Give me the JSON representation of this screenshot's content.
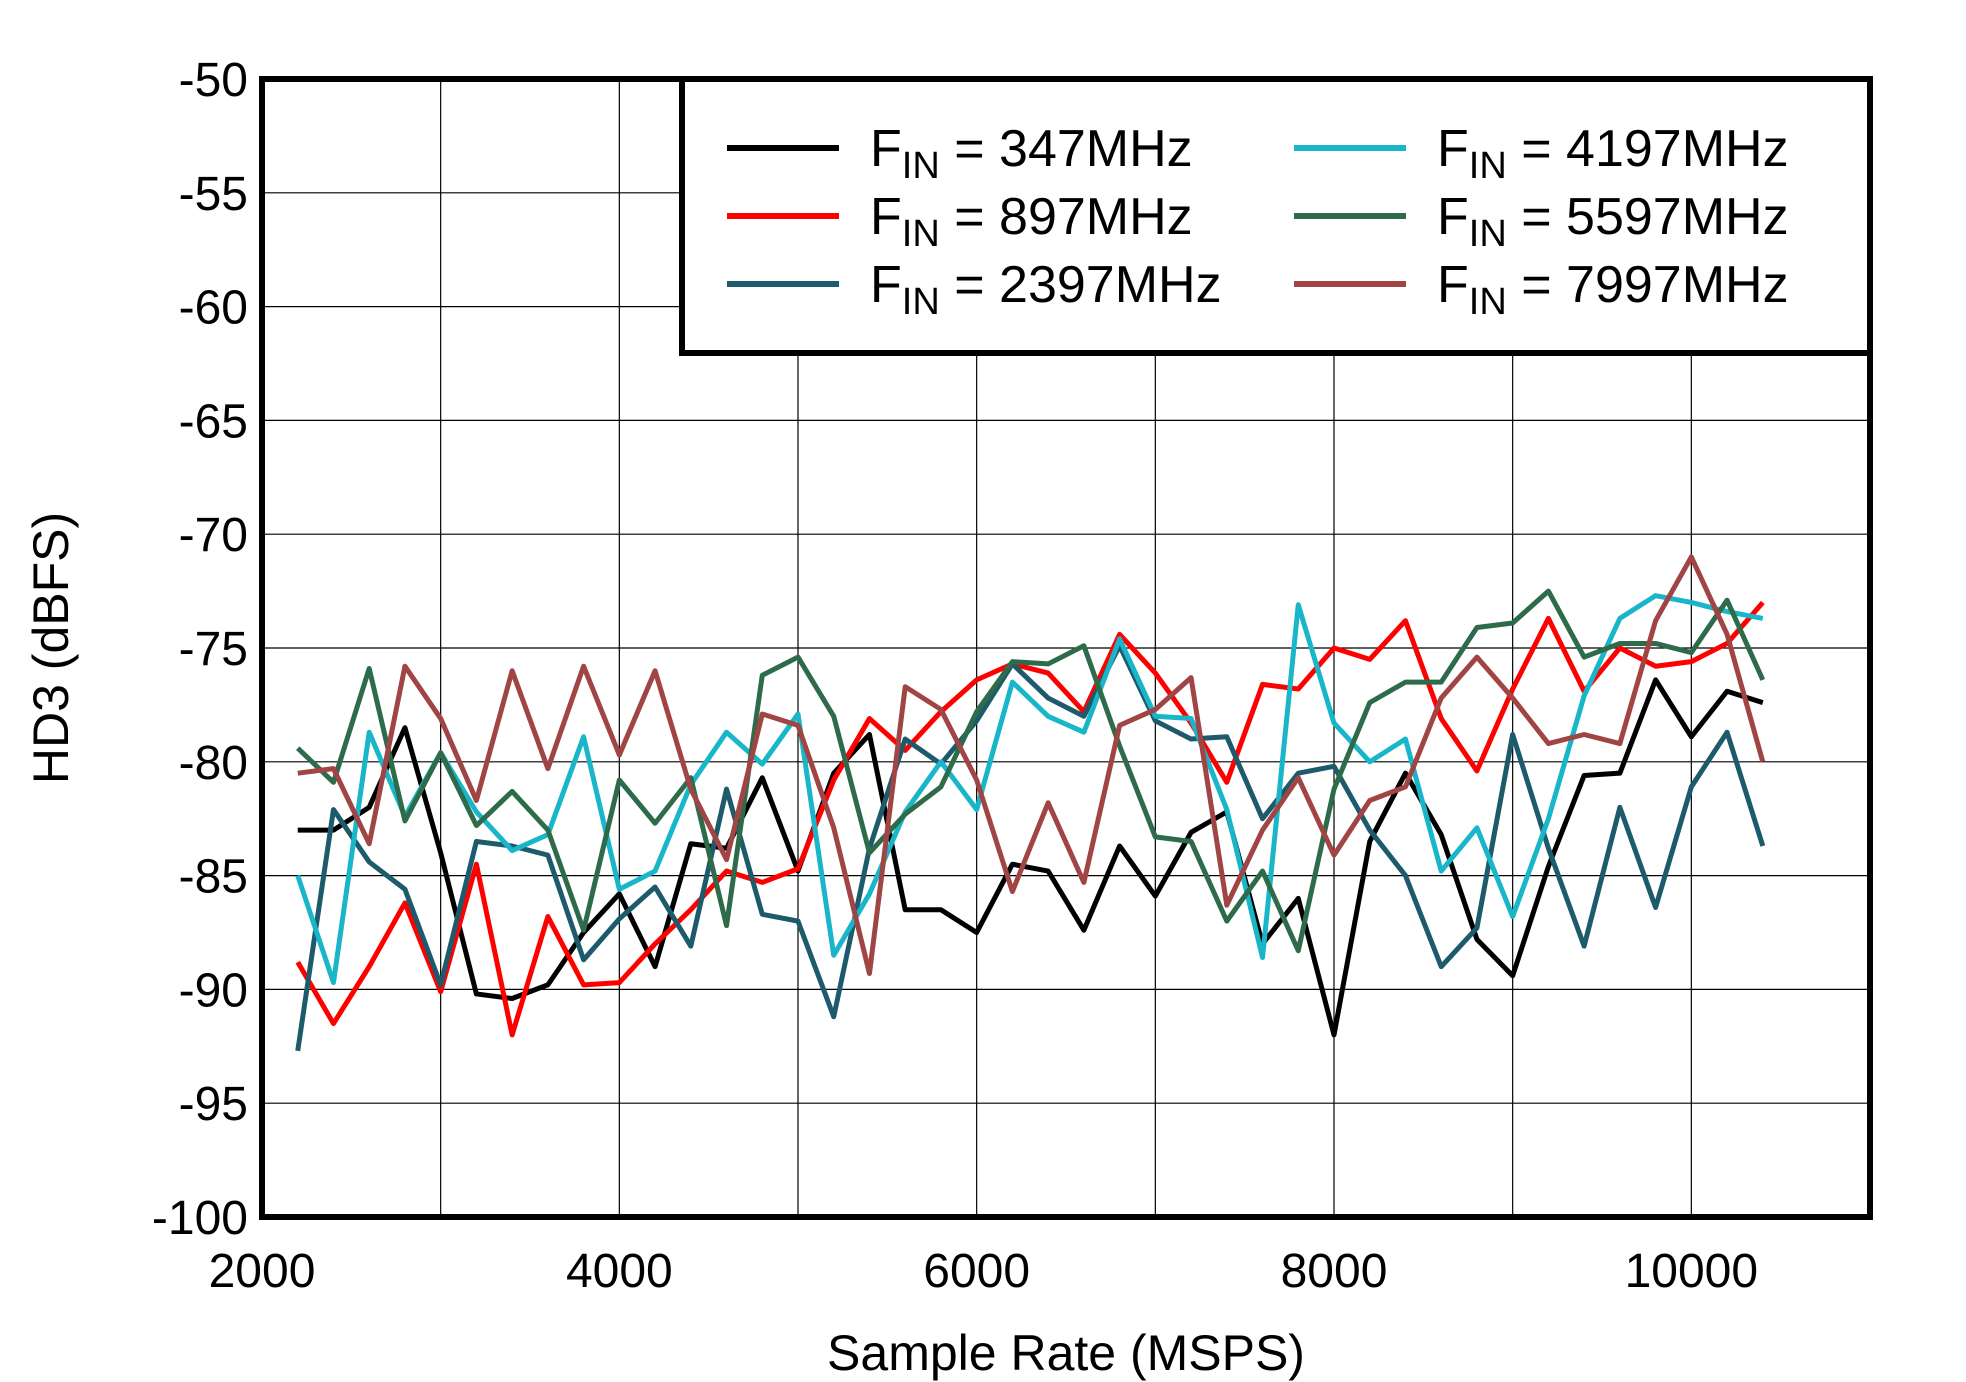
{
  "chart_data": {
    "type": "line",
    "title": "",
    "xlabel": "Sample Rate  (MSPS)",
    "ylabel": "HD3  (dBFS)",
    "xlim": [
      2000,
      11000
    ],
    "ylim": [
      -100,
      -50
    ],
    "xticks": [
      2000,
      4000,
      6000,
      8000,
      10000
    ],
    "yticks": [
      -50,
      -55,
      -60,
      -65,
      -70,
      -75,
      -80,
      -85,
      -90,
      -95,
      -100
    ],
    "xgrid_step": 1000,
    "grid": true,
    "legend_placement": "top-right",
    "x": [
      2200,
      2400,
      2600,
      2800,
      3000,
      3200,
      3400,
      3600,
      3800,
      4000,
      4200,
      4400,
      4600,
      4800,
      5000,
      5200,
      5400,
      5600,
      5800,
      6000,
      6200,
      6400,
      6600,
      6800,
      7000,
      7200,
      7400,
      7600,
      7800,
      8000,
      8200,
      8400,
      8600,
      8800,
      9000,
      9200,
      9400,
      9600,
      9800,
      10000,
      10200,
      10400
    ],
    "series": [
      {
        "name": "FIN = 347MHz",
        "color": "#000000",
        "values": [
          -83,
          -83,
          -82,
          -78.5,
          -84,
          -90.2,
          -90.4,
          -89.8,
          -87.5,
          -85.8,
          -89,
          -83.6,
          -83.8,
          -80.7,
          -84.8,
          -80.5,
          -78.8,
          -86.5,
          -86.5,
          -87.5,
          -84.5,
          -84.8,
          -87.4,
          -83.7,
          -85.9,
          -83.1,
          -82.2,
          -88,
          -86,
          -92,
          -83.5,
          -80.5,
          -83.2,
          -87.8,
          -89.4,
          -84.6,
          -80.6,
          -80.5,
          -76.4,
          -78.9,
          -76.9,
          -77.4
        ]
      },
      {
        "name": "FIN = 897MHz",
        "color": "#ff0000",
        "values": [
          -88.8,
          -91.5,
          -89,
          -86.2,
          -90.1,
          -84.5,
          -92,
          -86.8,
          -89.8,
          -89.7,
          -88,
          -86.5,
          -84.8,
          -85.3,
          -84.7,
          -80.8,
          -78.1,
          -79.5,
          -77.8,
          -76.4,
          -75.7,
          -76.1,
          -77.8,
          -74.4,
          -76.1,
          -78.3,
          -80.9,
          -76.6,
          -76.8,
          -75,
          -75.5,
          -73.8,
          -78.1,
          -80.4,
          -76.8,
          -73.7,
          -76.9,
          -75,
          -75.8,
          -75.6,
          -74.8,
          -73
        ]
      },
      {
        "name": "FIN = 2397MHz",
        "color": "#1c5a6c",
        "values": [
          -92.7,
          -82.1,
          -84.4,
          -85.6,
          -89.8,
          -83.5,
          -83.7,
          -84.1,
          -88.7,
          -86.9,
          -85.5,
          -88.1,
          -81.2,
          -86.7,
          -87,
          -91.2,
          -83.8,
          -79,
          -80.1,
          -78.2,
          -75.7,
          -77.2,
          -78,
          -74.9,
          -78.2,
          -79,
          -78.9,
          -82.5,
          -80.5,
          -80.2,
          -83,
          -85,
          -89,
          -87.3,
          -78.8,
          -83.8,
          -88.1,
          -82,
          -86.4,
          -81.1,
          -78.7,
          -83.7
        ]
      },
      {
        "name": "FIN = 4197MHz",
        "color": "#19b6c9",
        "values": [
          -85,
          -89.7,
          -78.7,
          -82.4,
          -79.6,
          -82.2,
          -83.9,
          -83.2,
          -78.9,
          -85.6,
          -84.8,
          -81,
          -78.7,
          -80.1,
          -77.9,
          -88.5,
          -85.8,
          -82.2,
          -80,
          -82.1,
          -76.5,
          -78,
          -78.7,
          -74.6,
          -78,
          -78.1,
          -82.1,
          -88.6,
          -73.1,
          -78.3,
          -80,
          -79,
          -84.8,
          -82.9,
          -86.8,
          -82.5,
          -77.1,
          -73.7,
          -72.7,
          -73,
          -73.4,
          -73.7
        ]
      },
      {
        "name": "FIN = 5597MHz",
        "color": "#2e6b4b",
        "values": [
          -79.4,
          -80.9,
          -75.9,
          -82.6,
          -79.6,
          -82.8,
          -81.3,
          -83,
          -87.4,
          -80.8,
          -82.7,
          -80.7,
          -87.2,
          -76.2,
          -75.4,
          -78,
          -84,
          -82.3,
          -81.1,
          -77.8,
          -75.6,
          -75.7,
          -74.9,
          -79.3,
          -83.3,
          -83.5,
          -87,
          -84.8,
          -88.3,
          -81.2,
          -77.4,
          -76.5,
          -76.5,
          -74.1,
          -73.9,
          -72.5,
          -75.4,
          -74.8,
          -74.8,
          -75.2,
          -72.9,
          -76.4
        ]
      },
      {
        "name": "FIN = 7997MHz",
        "color": "#a04444",
        "values": [
          -80.5,
          -80.3,
          -83.6,
          -75.8,
          -78.1,
          -81.7,
          -76,
          -80.3,
          -75.8,
          -79.7,
          -76,
          -81.2,
          -84.3,
          -77.9,
          -78.4,
          -82.9,
          -89.3,
          -76.7,
          -77.7,
          -80.8,
          -85.7,
          -81.8,
          -85.3,
          -78.4,
          -77.7,
          -76.3,
          -86.3,
          -83,
          -80.7,
          -84.1,
          -81.7,
          -81.1,
          -77.2,
          -75.4,
          -77.2,
          -79.2,
          -78.8,
          -79.2,
          -73.8,
          -71,
          -74.4,
          -80
        ]
      }
    ]
  }
}
